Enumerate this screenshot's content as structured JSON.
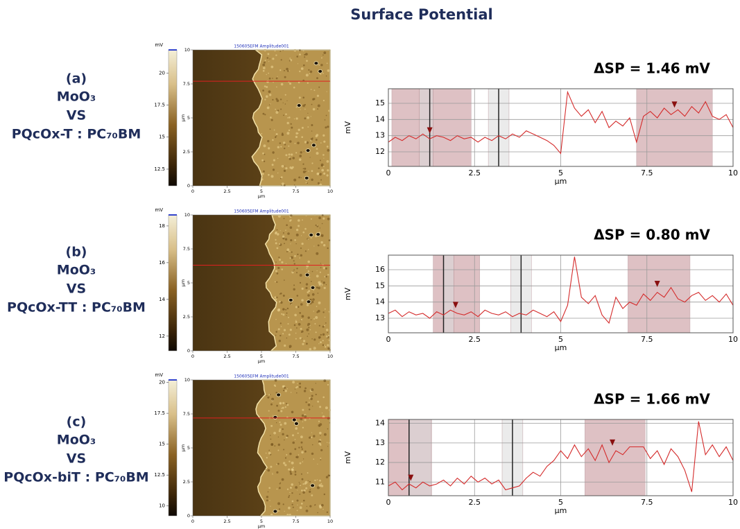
{
  "title": "Surface Potential",
  "panels": [
    {
      "label": "(a)",
      "lines": [
        "MoO₃",
        "VS",
        "PQcOx-T : PC₇₀BM"
      ],
      "image": {
        "title": "150605EFM Amplitude001",
        "xlabel": "µm",
        "ylabel": "µm",
        "xlim": [
          0,
          10
        ],
        "ylim": [
          0,
          10
        ],
        "xticks": [
          0,
          2.5,
          5,
          7.5,
          10
        ],
        "yticks": [
          0,
          2.5,
          5,
          7.5,
          10
        ]
      },
      "colorbar": {
        "unit": "mV",
        "lim": [
          11.2,
          21.8
        ],
        "ticks": [
          12.5,
          15,
          17.5,
          20
        ]
      }
    },
    {
      "label": "(b)",
      "lines": [
        "MoO₃",
        "VS",
        "PQcOx-TT : PC₇₀BM"
      ],
      "image": {
        "title": "150605EFM Amplitude001",
        "xlabel": "µm",
        "ylabel": "µm",
        "xlim": [
          0,
          10
        ],
        "ylim": [
          0,
          10
        ],
        "xticks": [
          0,
          2.5,
          5,
          7.5,
          10
        ],
        "yticks": [
          0,
          2.5,
          5,
          7.5,
          10
        ]
      },
      "colorbar": {
        "unit": "mV",
        "lim": [
          11.2,
          18.6
        ],
        "ticks": [
          12,
          14,
          16,
          18
        ]
      }
    },
    {
      "label": "(c)",
      "lines": [
        "MoO₃",
        "VS",
        "PQcOx-biT : PC₇₀BM"
      ],
      "image": {
        "title": "150605EFM Amplitude001",
        "xlabel": "µm",
        "ylabel": "µm",
        "xlim": [
          0,
          10
        ],
        "ylim": [
          0,
          10
        ],
        "xticks": [
          0,
          2.5,
          5,
          7.5,
          10
        ],
        "yticks": [
          0,
          2.5,
          5,
          7.5,
          10
        ]
      },
      "colorbar": {
        "unit": "mV",
        "lim": [
          9.2,
          20.2
        ],
        "ticks": [
          10,
          12.5,
          15,
          17.5,
          20
        ]
      }
    }
  ],
  "chart_data": [
    {
      "type": "line",
      "annotation": "ΔSP = 1.46 mV",
      "xlabel": "µm",
      "ylabel": "mV",
      "color": "#d42a2a",
      "grid": true,
      "xlim": [
        0,
        10
      ],
      "ylim": [
        11.1,
        15.9
      ],
      "xticks": [
        0,
        2.5,
        5,
        7.5,
        10
      ],
      "yticks": [
        12,
        13,
        14,
        15
      ],
      "x": [
        0,
        0.2,
        0.4,
        0.6,
        0.8,
        1,
        1.2,
        1.4,
        1.6,
        1.8,
        2,
        2.2,
        2.4,
        2.6,
        2.8,
        3,
        3.2,
        3.4,
        3.6,
        3.8,
        4,
        4.2,
        4.4,
        4.6,
        4.8,
        5,
        5.2,
        5.4,
        5.6,
        5.8,
        6,
        6.2,
        6.4,
        6.6,
        6.8,
        7,
        7.2,
        7.4,
        7.6,
        7.8,
        8,
        8.2,
        8.4,
        8.6,
        8.8,
        9,
        9.2,
        9.4,
        9.6,
        9.8,
        10
      ],
      "values": [
        12.6,
        12.9,
        12.7,
        13.0,
        12.8,
        13.1,
        12.8,
        13.0,
        12.9,
        12.7,
        13.0,
        12.8,
        12.9,
        12.6,
        12.9,
        12.7,
        13.0,
        12.8,
        13.1,
        12.9,
        13.3,
        13.1,
        12.9,
        12.7,
        12.4,
        11.9,
        15.7,
        14.7,
        14.2,
        14.6,
        13.8,
        14.5,
        13.5,
        13.9,
        13.6,
        14.1,
        12.6,
        14.2,
        14.5,
        14.1,
        14.7,
        14.3,
        14.6,
        14.2,
        14.8,
        14.4,
        15.1,
        14.2,
        14.0,
        14.3,
        13.5
      ],
      "regions": [
        {
          "x": [
            0.1,
            2.4
          ],
          "color": "#c48f95"
        },
        {
          "x": [
            0.9,
            1.3
          ],
          "color": "#dcdcdc"
        },
        {
          "x": [
            2.9,
            3.5
          ],
          "color": "#dcdcdc"
        },
        {
          "x": [
            7.2,
            9.4
          ],
          "color": "#c48f95"
        }
      ],
      "cursors": [
        1.2,
        3.2
      ],
      "markers": [
        {
          "x": 1.2,
          "y": 13.3
        },
        {
          "x": 8.3,
          "y": 14.9
        }
      ]
    },
    {
      "type": "line",
      "annotation": "ΔSP = 0.80 mV",
      "xlabel": "µm",
      "ylabel": "mV",
      "color": "#d42a2a",
      "grid": true,
      "xlim": [
        0,
        10
      ],
      "ylim": [
        12.1,
        16.9
      ],
      "xticks": [
        0,
        2.5,
        5,
        7.5,
        10
      ],
      "yticks": [
        13,
        14,
        15,
        16
      ],
      "x": [
        0,
        0.2,
        0.4,
        0.6,
        0.8,
        1,
        1.2,
        1.4,
        1.6,
        1.8,
        2,
        2.2,
        2.4,
        2.6,
        2.8,
        3,
        3.2,
        3.4,
        3.6,
        3.8,
        4,
        4.2,
        4.4,
        4.6,
        4.8,
        5,
        5.2,
        5.4,
        5.6,
        5.8,
        6,
        6.2,
        6.4,
        6.6,
        6.8,
        7,
        7.2,
        7.4,
        7.6,
        7.8,
        8,
        8.2,
        8.4,
        8.6,
        8.8,
        9,
        9.2,
        9.4,
        9.6,
        9.8,
        10
      ],
      "values": [
        13.3,
        13.5,
        13.1,
        13.4,
        13.2,
        13.3,
        13.0,
        13.4,
        13.2,
        13.5,
        13.3,
        13.2,
        13.4,
        13.1,
        13.5,
        13.3,
        13.2,
        13.4,
        13.1,
        13.3,
        13.2,
        13.5,
        13.3,
        13.1,
        13.4,
        12.8,
        13.8,
        16.8,
        14.3,
        13.9,
        14.4,
        13.2,
        12.7,
        14.3,
        13.6,
        14.0,
        13.8,
        14.5,
        14.1,
        14.6,
        14.3,
        14.9,
        14.2,
        14.0,
        14.4,
        14.6,
        14.1,
        14.4,
        14.0,
        14.5,
        13.8
      ],
      "regions": [
        {
          "x": [
            1.3,
            2.65
          ],
          "color": "#c48f95"
        },
        {
          "x": [
            1.6,
            1.9
          ],
          "color": "#dcdcdc"
        },
        {
          "x": [
            3.55,
            4.15
          ],
          "color": "#dcdcdc"
        },
        {
          "x": [
            6.95,
            8.75
          ],
          "color": "#c48f95"
        }
      ],
      "cursors": [
        1.6,
        3.85
      ],
      "markers": [
        {
          "x": 1.95,
          "y": 13.8
        },
        {
          "x": 7.8,
          "y": 15.1
        }
      ]
    },
    {
      "type": "line",
      "annotation": "ΔSP = 1.66 mV",
      "xlabel": "µm",
      "ylabel": "mV",
      "color": "#d42a2a",
      "grid": true,
      "xlim": [
        0,
        10
      ],
      "ylim": [
        10.3,
        14.2
      ],
      "xticks": [
        0,
        2.5,
        5,
        7.5,
        10
      ],
      "yticks": [
        11,
        12,
        13,
        14
      ],
      "x": [
        0,
        0.2,
        0.4,
        0.6,
        0.8,
        1,
        1.2,
        1.4,
        1.6,
        1.8,
        2,
        2.2,
        2.4,
        2.6,
        2.8,
        3,
        3.2,
        3.4,
        3.6,
        3.8,
        4,
        4.2,
        4.4,
        4.6,
        4.8,
        5,
        5.2,
        5.4,
        5.6,
        5.8,
        6,
        6.2,
        6.4,
        6.6,
        6.8,
        7,
        7.2,
        7.4,
        7.6,
        7.8,
        8,
        8.2,
        8.4,
        8.6,
        8.8,
        9,
        9.2,
        9.4,
        9.6,
        9.8,
        10
      ],
      "values": [
        10.8,
        11.0,
        10.6,
        10.9,
        10.7,
        11.0,
        10.8,
        10.9,
        11.1,
        10.8,
        11.2,
        10.9,
        11.3,
        11.0,
        11.2,
        10.9,
        11.1,
        10.6,
        10.7,
        10.8,
        11.2,
        11.5,
        11.3,
        11.8,
        12.1,
        12.6,
        12.2,
        12.9,
        12.3,
        12.7,
        12.1,
        12.9,
        12.0,
        12.6,
        12.4,
        12.8,
        12.8,
        12.8,
        12.2,
        12.6,
        11.9,
        12.7,
        12.3,
        11.6,
        10.5,
        14.1,
        12.4,
        12.9,
        12.3,
        12.8,
        12.1
      ],
      "regions": [
        {
          "x": [
            0,
            1.25
          ],
          "color": "#c48f95"
        },
        {
          "x": [
            0.6,
            1.25
          ],
          "color": "#dcdcdc"
        },
        {
          "x": [
            3.3,
            3.9
          ],
          "color": "#dcdcdc"
        },
        {
          "x": [
            5.7,
            7.45
          ],
          "color": "#c48f95"
        }
      ],
      "cursors": [
        0.6,
        3.6
      ],
      "markers": [
        {
          "x": 0.65,
          "y": 11.2
        },
        {
          "x": 6.5,
          "y": 13.0
        }
      ]
    }
  ]
}
